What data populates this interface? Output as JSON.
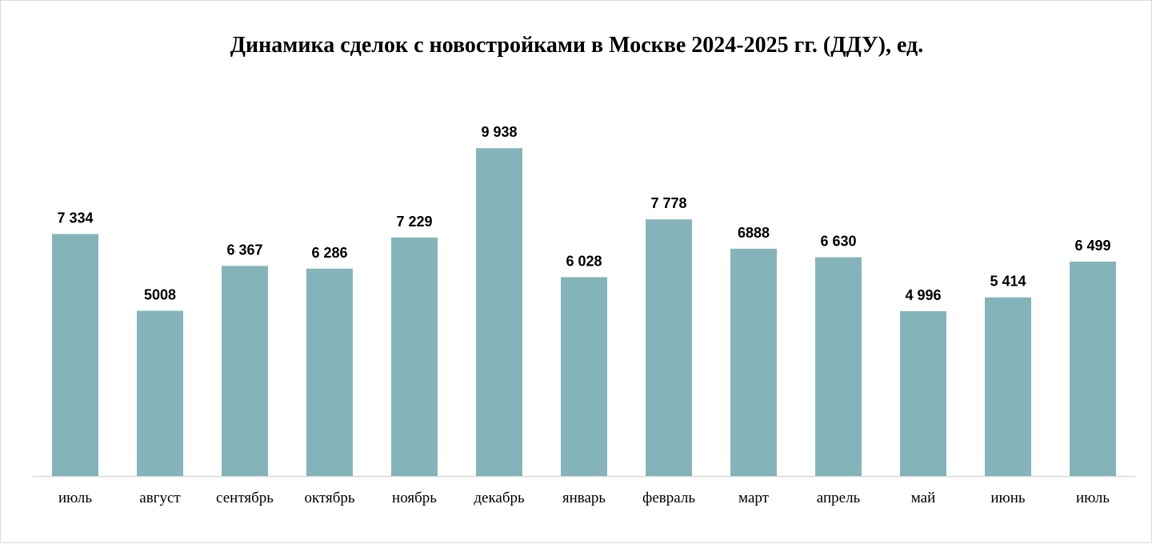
{
  "chart_data": {
    "type": "bar",
    "title": "Динамика сделок с новостройками в Москве 2024-2025 гг. (ДДУ), ед.",
    "categories": [
      "июль",
      "август",
      "сентябрь",
      "октябрь",
      "ноябрь",
      "декабрь",
      "январь",
      "февраль",
      "март",
      "апрель",
      "май",
      "июнь",
      "июль"
    ],
    "values": [
      7334,
      5008,
      6367,
      6286,
      7229,
      9938,
      6028,
      7778,
      6888,
      6630,
      4996,
      5414,
      6499
    ],
    "data_labels": [
      "7 334",
      "5008",
      "6 367",
      "6 286",
      "7 229",
      "9 938",
      "6 028",
      "7 778",
      "6888",
      "6 630",
      "4 996",
      "5 414",
      "6 499"
    ],
    "xlabel": "",
    "ylabel": "",
    "ylim": [
      0,
      10000
    ],
    "grid": false,
    "legend": "none",
    "bar_color": "#84B4B9",
    "axis_color": "#d9d9d9"
  }
}
